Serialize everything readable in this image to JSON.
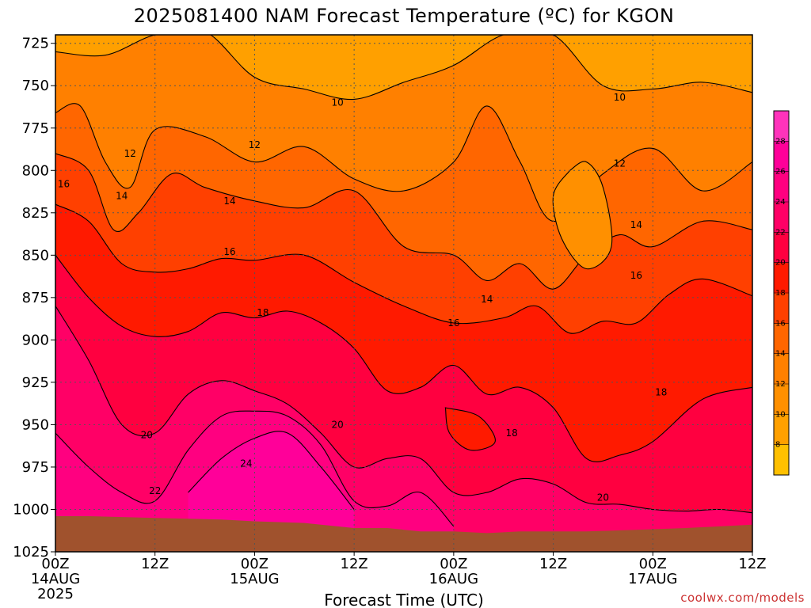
{
  "title": "2025081400 NAM Forecast Temperature (ºC) for KGON",
  "credit": "coolwx.com/models",
  "chart_data": {
    "type": "heatmap",
    "title": "2025081400 NAM Forecast Temperature (ºC) for KGON",
    "xlabel": "Forecast Time (UTC)",
    "ylabel": "",
    "x_range_hours": [
      0,
      84
    ],
    "y_range_hpa": [
      720,
      1025
    ],
    "y_reversed": true,
    "grid": true,
    "y_ticks": [
      725,
      750,
      775,
      800,
      825,
      850,
      875,
      900,
      925,
      950,
      975,
      1000,
      1025
    ],
    "x_ticks": [
      {
        "hour": 0,
        "label": "00Z",
        "date": "14AUG",
        "year": "2025"
      },
      {
        "hour": 12,
        "label": "12Z",
        "date": "",
        "year": ""
      },
      {
        "hour": 24,
        "label": "00Z",
        "date": "15AUG",
        "year": ""
      },
      {
        "hour": 36,
        "label": "12Z",
        "date": "",
        "year": ""
      },
      {
        "hour": 48,
        "label": "00Z",
        "date": "16AUG",
        "year": ""
      },
      {
        "hour": 60,
        "label": "12Z",
        "date": "",
        "year": ""
      },
      {
        "hour": 72,
        "label": "00Z",
        "date": "17AUG",
        "year": ""
      },
      {
        "hour": 84,
        "label": "12Z",
        "date": "",
        "year": ""
      }
    ],
    "levels": [
      8,
      10,
      12,
      14,
      16,
      18,
      20,
      22,
      24,
      26,
      28
    ],
    "level_colors": [
      "#ffc000",
      "#ffa000",
      "#ff9000",
      "#ff8000",
      "#ff6600",
      "#ff4000",
      "#ff1a00",
      "#ff0040",
      "#ff0066",
      "#ff0080",
      "#ff0099",
      "#ff33bb"
    ],
    "colorbar": {
      "labels": [
        "8",
        "10",
        "12",
        "14",
        "16",
        "18",
        "20",
        "22",
        "24",
        "26",
        "28"
      ]
    },
    "contour_labels": [
      {
        "text": "10",
        "hour": 34,
        "p": 760
      },
      {
        "text": "10",
        "hour": 68,
        "p": 757
      },
      {
        "text": "12",
        "hour": 9,
        "p": 790
      },
      {
        "text": "12",
        "hour": 24,
        "p": 785
      },
      {
        "text": "12",
        "hour": 68,
        "p": 796
      },
      {
        "text": "14",
        "hour": 8,
        "p": 815
      },
      {
        "text": "14",
        "hour": 21,
        "p": 818
      },
      {
        "text": "14",
        "hour": 52,
        "p": 876
      },
      {
        "text": "14",
        "hour": 70,
        "p": 832
      },
      {
        "text": "16",
        "hour": 1,
        "p": 808
      },
      {
        "text": "16",
        "hour": 21,
        "p": 848
      },
      {
        "text": "16",
        "hour": 48,
        "p": 890
      },
      {
        "text": "16",
        "hour": 70,
        "p": 862
      },
      {
        "text": "18",
        "hour": 25,
        "p": 884
      },
      {
        "text": "18",
        "hour": 55,
        "p": 955
      },
      {
        "text": "18",
        "hour": 73,
        "p": 931
      },
      {
        "text": "20",
        "hour": 11,
        "p": 956
      },
      {
        "text": "20",
        "hour": 34,
        "p": 950
      },
      {
        "text": "20",
        "hour": 66,
        "p": 993
      },
      {
        "text": "22",
        "hour": 12,
        "p": 989
      },
      {
        "text": "24",
        "hour": 23,
        "p": 973
      }
    ],
    "surface_pressure": {
      "hours": [
        0,
        4,
        12,
        20,
        24,
        30,
        36,
        40,
        44,
        48,
        52,
        56,
        60,
        64,
        70,
        76,
        84
      ],
      "p": [
        1004,
        1004,
        1005,
        1006,
        1007,
        1008,
        1011,
        1011,
        1013,
        1013,
        1014,
        1013,
        1013,
        1013,
        1012,
        1011,
        1009
      ]
    },
    "isotherms": [
      {
        "level": 10,
        "hours": [
          0,
          6,
          12,
          18,
          24,
          30,
          36,
          42,
          48,
          54,
          60,
          66,
          72,
          78,
          84
        ],
        "p": [
          730,
          732,
          720,
          718,
          745,
          752,
          758,
          748,
          738,
          720,
          720,
          750,
          752,
          748,
          754
        ]
      },
      {
        "level": 12,
        "hours": [
          0,
          3,
          6,
          9,
          12,
          18,
          24,
          30,
          36,
          42,
          48,
          52,
          56,
          60,
          66,
          72,
          78,
          84
        ],
        "p": [
          766,
          762,
          795,
          810,
          776,
          780,
          795,
          786,
          805,
          812,
          795,
          762,
          795,
          830,
          802,
          787,
          812,
          795
        ]
      },
      {
        "level": 14,
        "hours": [
          0,
          4,
          7,
          10,
          14,
          18,
          24,
          30,
          36,
          42,
          48,
          52,
          56,
          60,
          64,
          68,
          72,
          78,
          84
        ],
        "p": [
          790,
          800,
          835,
          825,
          802,
          810,
          818,
          822,
          812,
          845,
          850,
          865,
          855,
          870,
          850,
          838,
          845,
          830,
          835
        ]
      },
      {
        "level": 16,
        "hours": [
          0,
          4,
          8,
          12,
          16,
          20,
          24,
          30,
          36,
          42,
          48,
          54,
          58,
          62,
          66,
          70,
          74,
          78,
          84
        ],
        "p": [
          820,
          830,
          855,
          860,
          858,
          852,
          853,
          850,
          866,
          880,
          890,
          887,
          880,
          896,
          889,
          890,
          873,
          864,
          874
        ]
      },
      {
        "level": 18,
        "hours": [
          0,
          4,
          8,
          12,
          16,
          20,
          24,
          28,
          32,
          36,
          40,
          44,
          48,
          52,
          56,
          60,
          64,
          68,
          72,
          78,
          84
        ],
        "p": [
          850,
          875,
          892,
          898,
          895,
          884,
          887,
          883,
          890,
          905,
          930,
          928,
          915,
          932,
          928,
          940,
          970,
          968,
          960,
          935,
          928
        ]
      },
      {
        "level": 20,
        "hours": [
          0,
          4,
          8,
          12,
          16,
          20,
          24,
          28,
          32,
          36,
          40,
          44,
          48,
          52,
          56,
          60,
          64,
          68,
          72,
          76,
          80,
          84
        ],
        "p": [
          880,
          912,
          950,
          955,
          932,
          924,
          930,
          938,
          955,
          975,
          970,
          970,
          990,
          990,
          982,
          985,
          996,
          997,
          1000,
          1001,
          1000,
          1002
        ]
      },
      {
        "level": 22,
        "hours": [
          0,
          4,
          8,
          12,
          16,
          20,
          24,
          28,
          32,
          36,
          40,
          44,
          48
        ],
        "p": [
          955,
          975,
          990,
          995,
          965,
          945,
          942,
          945,
          962,
          995,
          998,
          990,
          1010
        ]
      },
      {
        "level": 24,
        "hours": [
          16,
          20,
          24,
          28,
          32,
          36
        ],
        "p": [
          990,
          970,
          958,
          955,
          975,
          1000
        ]
      }
    ]
  }
}
